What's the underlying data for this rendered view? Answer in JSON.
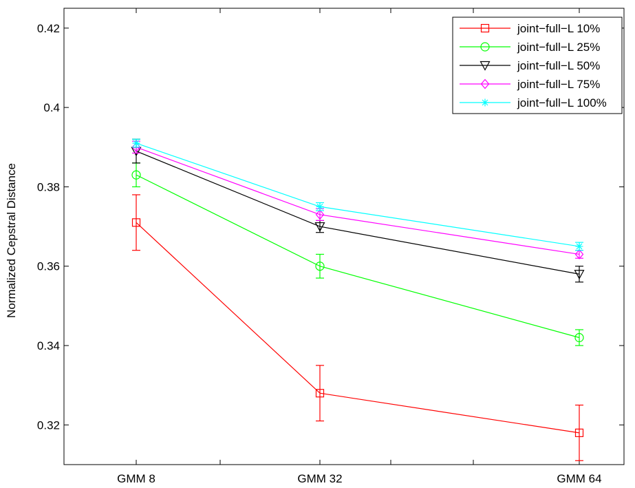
{
  "chart_data": {
    "type": "line",
    "title": "",
    "xlabel": "",
    "ylabel": "Normalized Cepstral Distance",
    "categories": [
      "GMM 8",
      "GMM 32",
      "GMM 64"
    ],
    "ylim": [
      0.31,
      0.425
    ],
    "yticks": [
      "0.32",
      "0.34",
      "0.36",
      "0.38",
      "0.4",
      "0.42"
    ],
    "grid": false,
    "legend_position": "top-right",
    "series": [
      {
        "name": "joint−full−L 10%",
        "color": "#ff0000",
        "marker": "square",
        "values": [
          0.371,
          0.328,
          0.318
        ],
        "errors": [
          0.007,
          0.007,
          0.007
        ]
      },
      {
        "name": "joint−full−L 25%",
        "color": "#00ff00",
        "marker": "circle",
        "values": [
          0.383,
          0.36,
          0.342
        ],
        "errors": [
          0.003,
          0.003,
          0.002
        ]
      },
      {
        "name": "joint−full−L 50%",
        "color": "#000000",
        "marker": "triangle-down",
        "values": [
          0.389,
          0.37,
          0.358
        ],
        "errors": [
          0.003,
          0.0015,
          0.002
        ]
      },
      {
        "name": "joint−full−L 75%",
        "color": "#ff00ff",
        "marker": "diamond",
        "values": [
          0.39,
          0.373,
          0.363
        ],
        "errors": [
          0.0015,
          0.0015,
          0.001
        ]
      },
      {
        "name": "joint−full−L 100%",
        "color": "#00ffff",
        "marker": "star",
        "values": [
          0.391,
          0.375,
          0.365
        ],
        "errors": [
          0.001,
          0.001,
          0.001
        ]
      }
    ]
  }
}
